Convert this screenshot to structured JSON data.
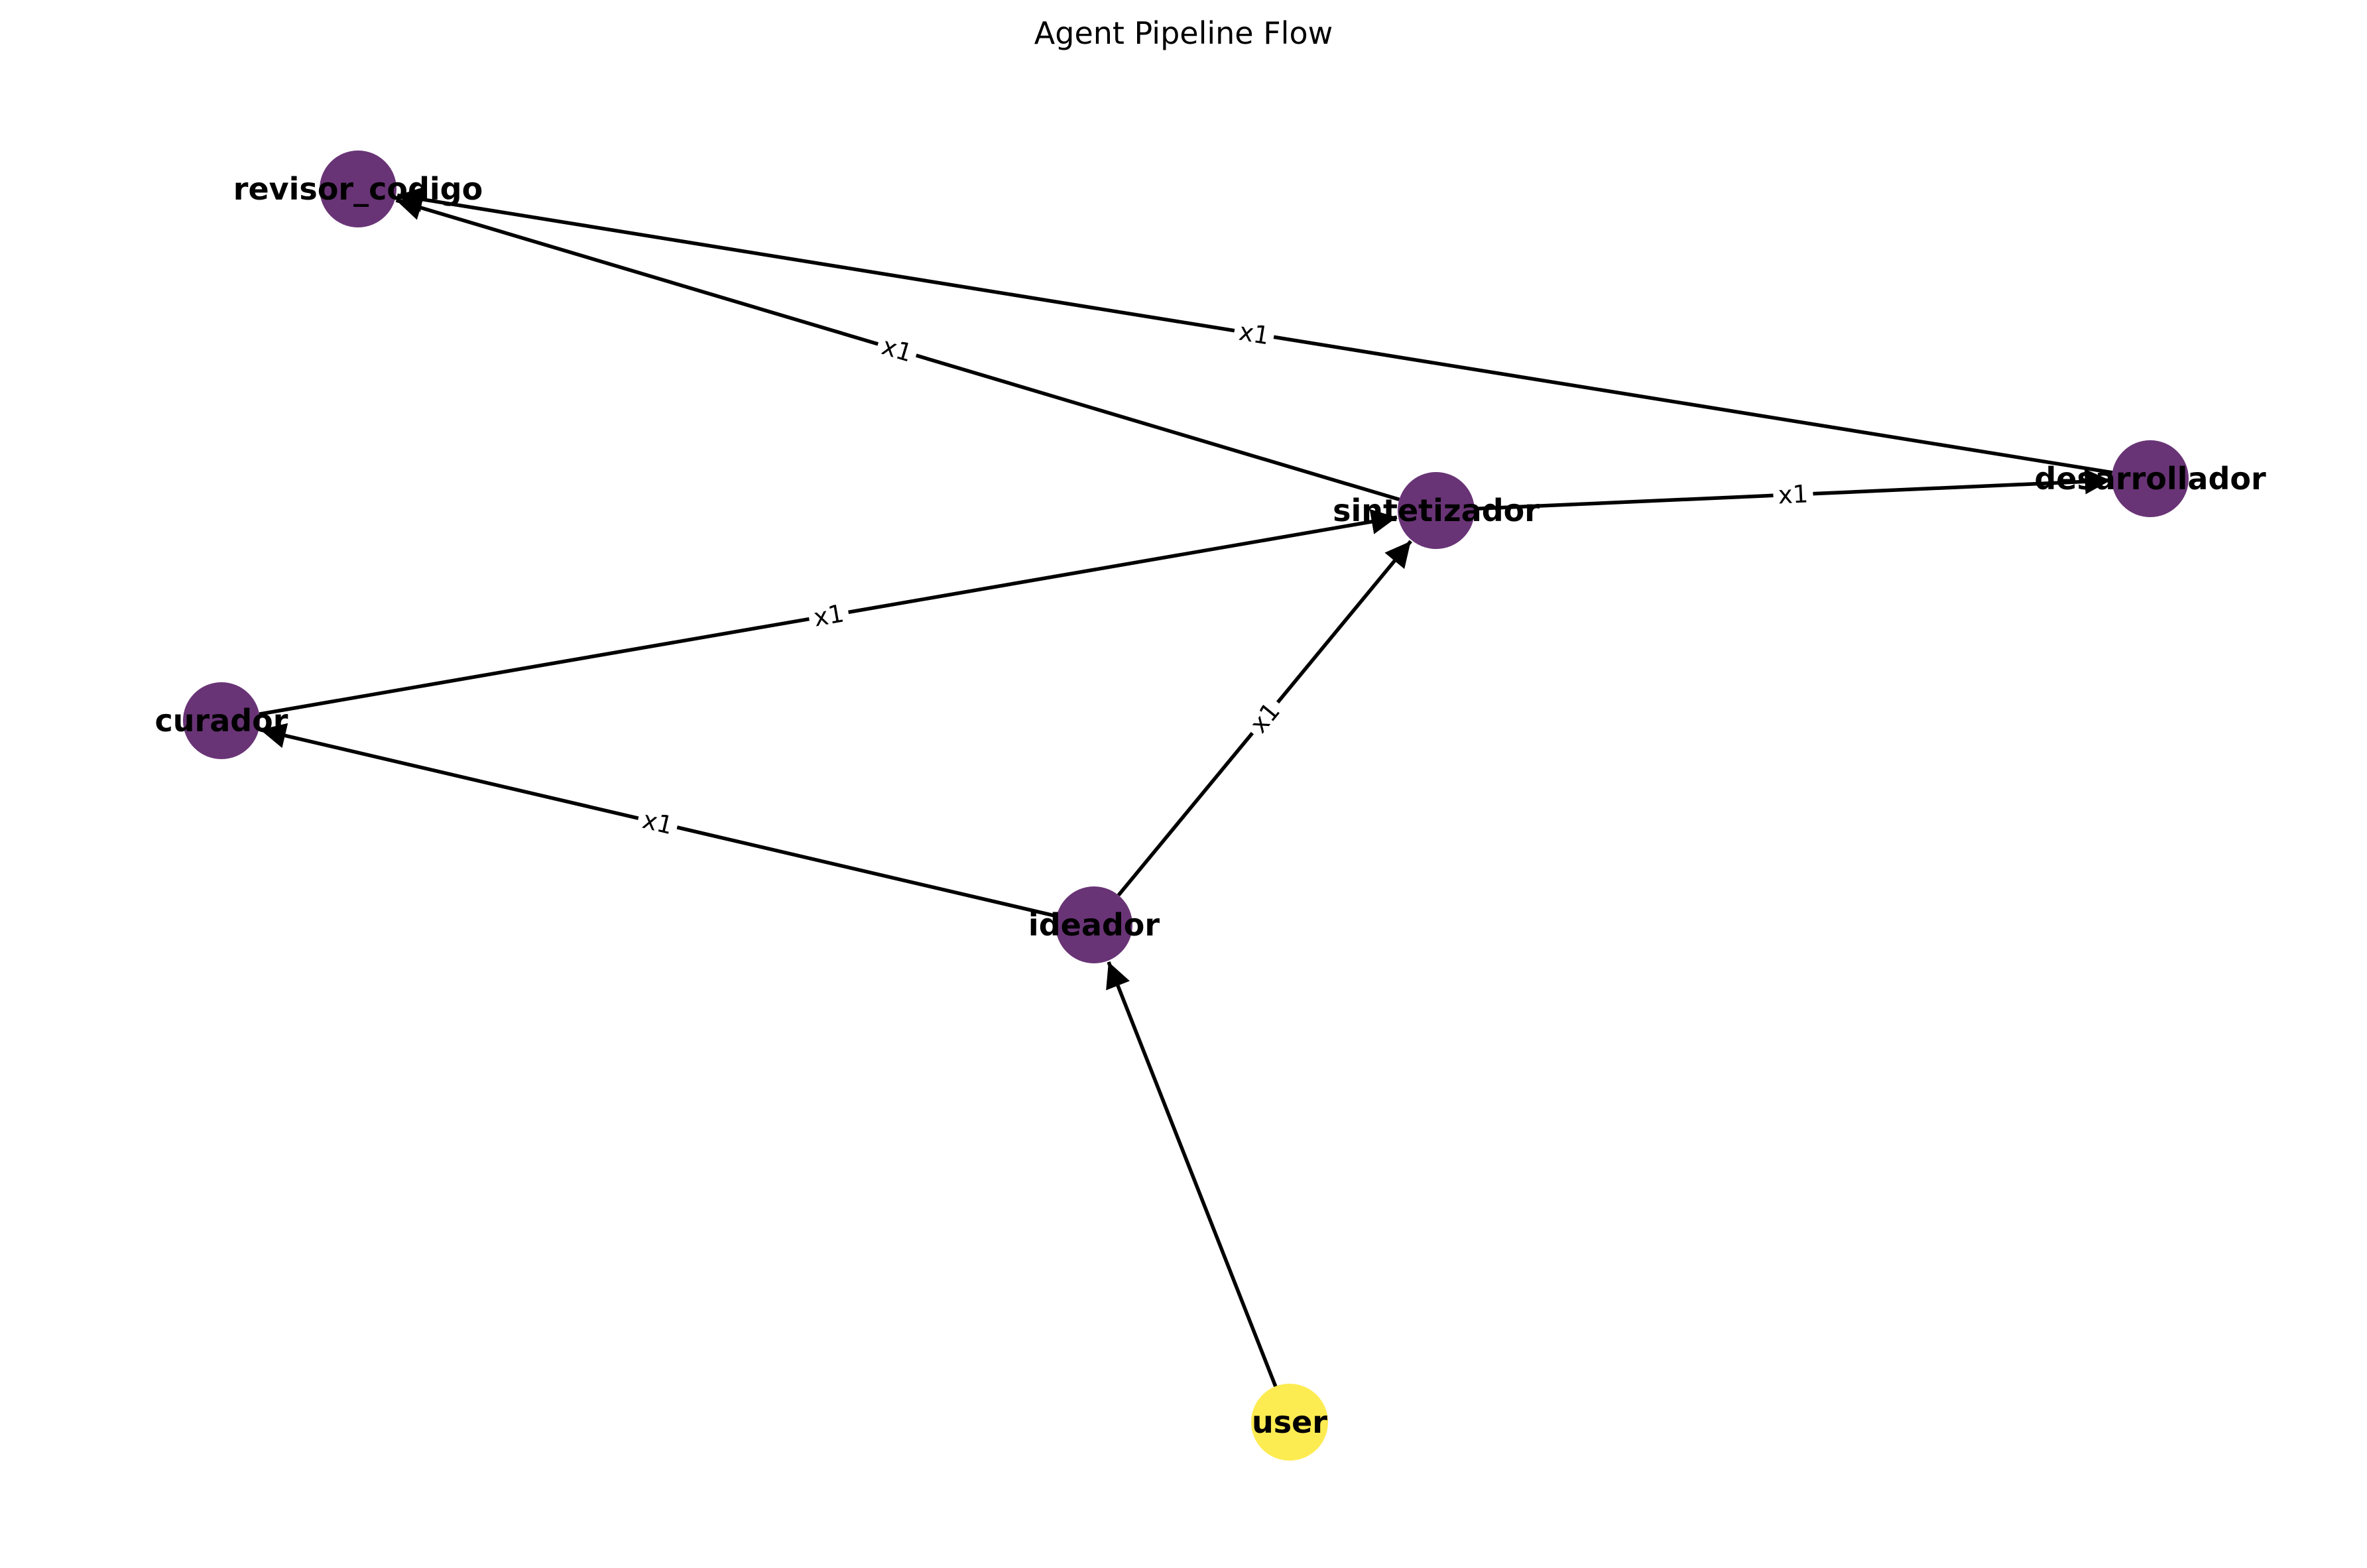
{
  "title": "Agent Pipeline Flow",
  "nodes": [
    {
      "id": "revisor_codigo",
      "label": "revisor_codigo",
      "color": "#440154",
      "kind": "agent"
    },
    {
      "id": "sintetizador",
      "label": "sintetizador",
      "color": "#440154",
      "kind": "agent"
    },
    {
      "id": "desarrollador",
      "label": "desarrollador",
      "color": "#440154",
      "kind": "agent"
    },
    {
      "id": "curador",
      "label": "curador",
      "color": "#440154",
      "kind": "agent"
    },
    {
      "id": "ideador",
      "label": "ideador",
      "color": "#440154",
      "kind": "agent"
    },
    {
      "id": "user",
      "label": "user",
      "color": "#fde725",
      "kind": "user"
    }
  ],
  "edges": [
    {
      "from": "user",
      "to": "ideador",
      "label": ""
    },
    {
      "from": "ideador",
      "to": "curador",
      "label": "x1"
    },
    {
      "from": "ideador",
      "to": "sintetizador",
      "label": "x1"
    },
    {
      "from": "curador",
      "to": "sintetizador",
      "label": "x1"
    },
    {
      "from": "sintetizador",
      "to": "revisor_codigo",
      "label": "x1"
    },
    {
      "from": "sintetizador",
      "to": "desarrollador",
      "label": "x1"
    },
    {
      "from": "desarrollador",
      "to": "revisor_codigo",
      "label": "x1"
    }
  ],
  "style": {
    "node_opacity": 0.8,
    "edge_color": "#000000",
    "background": "#ffffff"
  }
}
